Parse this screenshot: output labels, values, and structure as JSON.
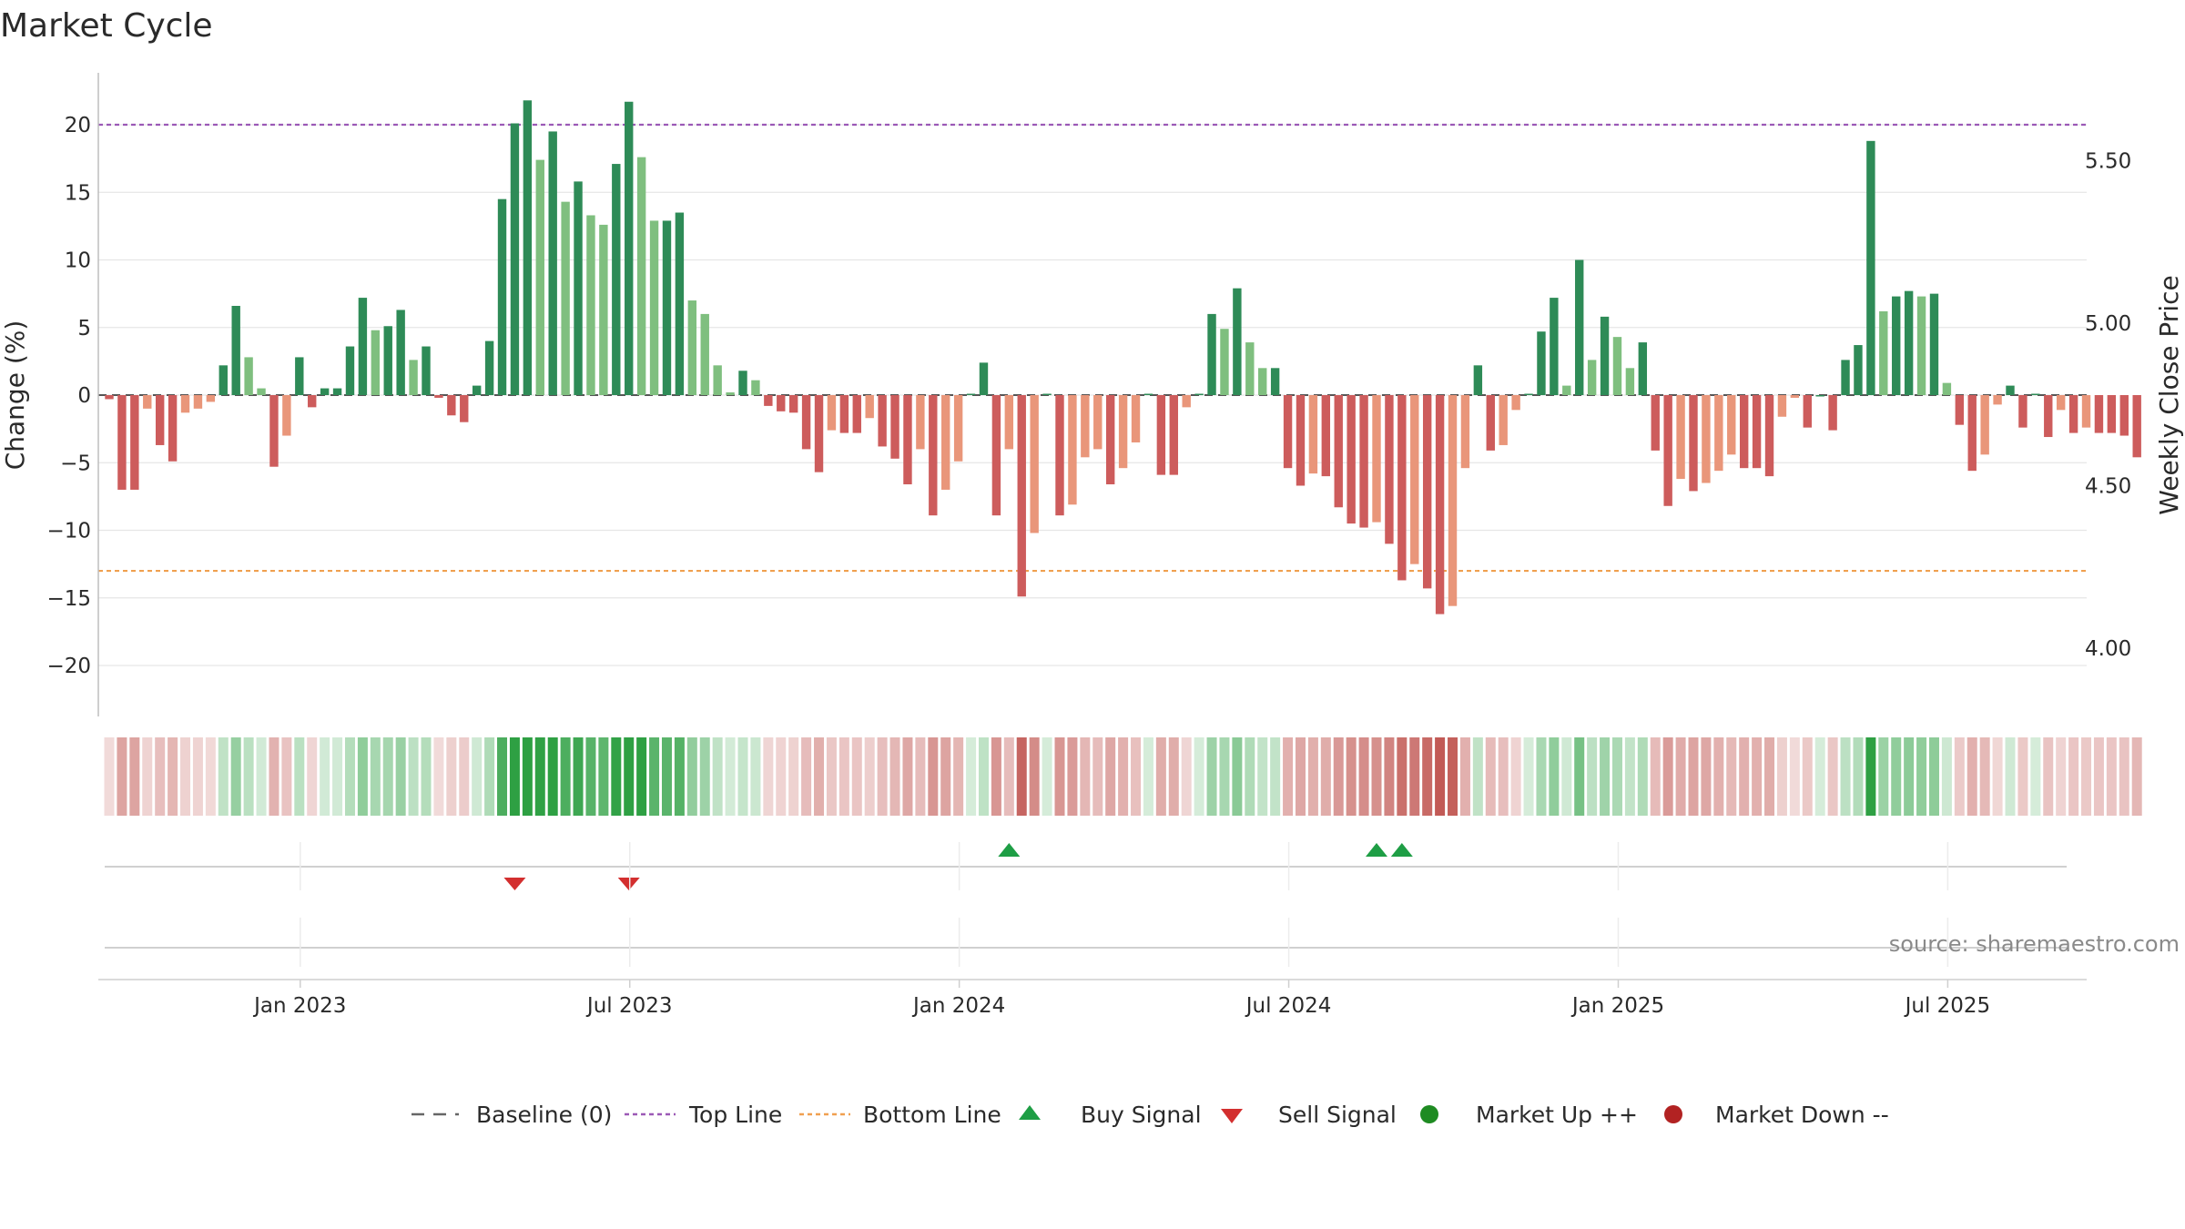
{
  "chart_data": {
    "type": "bar",
    "title": "Market Cycle",
    "ylabel_left": "Change (%)",
    "ylabel_right": "Weekly Close Price",
    "ylim_left": [
      -23.5,
      23.5
    ],
    "ylim_right": [
      3.79,
      5.77
    ],
    "yticks_left": [
      20,
      15,
      10,
      5,
      0,
      -5,
      -10,
      -15,
      -20
    ],
    "yticks_left_labels": [
      "20",
      "15",
      "10",
      "5",
      "0",
      "−5",
      "−10",
      "−15",
      "−20"
    ],
    "yticks_right": [
      5.5,
      5.0,
      4.5,
      4.0
    ],
    "yticks_right_labels": [
      "5.50",
      "5.00",
      "4.50",
      "4.00"
    ],
    "x_tick_labels": [
      "Jan 2023",
      "Jul 2023",
      "Jan 2024",
      "Jul 2024",
      "Jan 2025",
      "Jul 2025"
    ],
    "x_tick_weeks": [
      15,
      41,
      67,
      93,
      119,
      145
    ],
    "top_line": 20,
    "bottom_line": -13,
    "values": [
      -0.3,
      -7,
      -7,
      -1,
      -3.7,
      -4.9,
      -1.3,
      -1,
      -0.5,
      2.2,
      6.6,
      2.8,
      0.5,
      -5.3,
      -3,
      2.8,
      -0.9,
      0.5,
      0.5,
      3.6,
      7.2,
      4.8,
      5.1,
      6.3,
      2.6,
      3.6,
      -0.2,
      -1.5,
      -2,
      0.7,
      4,
      14.5,
      20.1,
      21.8,
      17.4,
      19.5,
      14.3,
      15.8,
      13.3,
      12.6,
      17.1,
      21.7,
      17.6,
      12.9,
      12.9,
      13.5,
      7,
      6,
      2.2,
      0.2,
      1.8,
      1.1,
      -0.8,
      -1.2,
      -1.3,
      -4,
      -5.7,
      -2.6,
      -2.8,
      -2.8,
      -1.7,
      -3.8,
      -4.7,
      -6.6,
      -4,
      -8.9,
      -7,
      -4.9,
      0.1,
      2.4,
      -8.9,
      -4,
      -14.9,
      -10.2,
      0.1,
      -8.9,
      -8.1,
      -4.6,
      -4,
      -6.6,
      -5.4,
      -3.5,
      0.1,
      -5.9,
      -5.9,
      -0.9,
      0.1,
      6,
      4.9,
      7.9,
      3.9,
      2,
      2,
      -5.4,
      -6.7,
      -5.8,
      -6,
      -8.3,
      -9.5,
      -9.8,
      -9.4,
      -11,
      -13.7,
      -12.5,
      -14.3,
      -16.2,
      -15.6,
      -5.4,
      2.2,
      -4.1,
      -3.7,
      -1.1,
      0.1,
      4.7,
      7.2,
      0.7,
      10,
      2.6,
      5.8,
      4.3,
      2,
      3.9,
      -4.1,
      -8.2,
      -6.2,
      -7.1,
      -6.5,
      -5.6,
      -4.4,
      -5.4,
      -5.4,
      -6,
      -1.6,
      -0.2,
      -2.4,
      0,
      -2.6,
      2.6,
      3.7,
      18.8,
      6.2,
      7.3,
      7.7,
      7.3,
      7.5,
      0.9,
      -2.2,
      -5.6,
      -4.4,
      -0.7,
      0.7,
      -2.4,
      0.1,
      -3.1,
      -1.1,
      -2.8,
      -2.4,
      -2.8,
      -2.8,
      -3,
      -4.6
    ],
    "buy_signal_weeks": [
      71,
      100,
      102
    ],
    "sell_signal_weeks": [
      32,
      41
    ],
    "market_up_weeks": [],
    "market_down_weeks": [],
    "colors": {
      "strong_up": "#2e8b57",
      "weak_up": "#7fbf7f",
      "strong_down": "#cd5c5c",
      "weak_down": "#e9967a",
      "top_line": "#9b59b6",
      "bottom_line": "#f0a050",
      "buy": "#1e9e45",
      "sell": "#d32f2f",
      "market_up": "#1e8b22",
      "market_down": "#b22222"
    },
    "legend": [
      {
        "key": "baseline",
        "label": "Baseline (0)"
      },
      {
        "key": "top",
        "label": "Top Line"
      },
      {
        "key": "bottom",
        "label": "Bottom Line"
      },
      {
        "key": "buy",
        "label": "Buy Signal"
      },
      {
        "key": "sell",
        "label": "Sell Signal"
      },
      {
        "key": "up",
        "label": "Market Up ++"
      },
      {
        "key": "down",
        "label": "Market Down --"
      }
    ],
    "source": "source: sharemaestro.com"
  }
}
